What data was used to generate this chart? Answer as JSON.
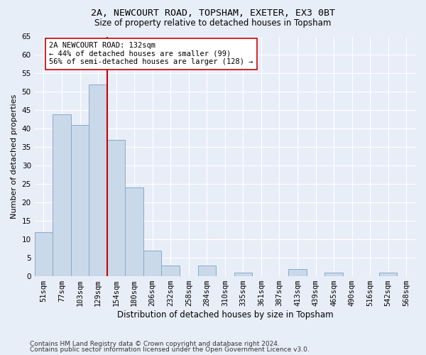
{
  "title1": "2A, NEWCOURT ROAD, TOPSHAM, EXETER, EX3 0BT",
  "title2": "Size of property relative to detached houses in Topsham",
  "xlabel": "Distribution of detached houses by size in Topsham",
  "ylabel": "Number of detached properties",
  "categories": [
    "51sqm",
    "77sqm",
    "103sqm",
    "129sqm",
    "154sqm",
    "180sqm",
    "206sqm",
    "232sqm",
    "258sqm",
    "284sqm",
    "310sqm",
    "335sqm",
    "361sqm",
    "387sqm",
    "413sqm",
    "439sqm",
    "465sqm",
    "490sqm",
    "516sqm",
    "542sqm",
    "568sqm"
  ],
  "values": [
    12,
    44,
    41,
    52,
    37,
    24,
    7,
    3,
    0,
    3,
    0,
    1,
    0,
    0,
    2,
    0,
    1,
    0,
    0,
    1,
    0
  ],
  "bar_color": "#c9d9ea",
  "bar_edge_color": "#8aaac8",
  "vline_x_index": 3,
  "vline_color": "#cc0000",
  "annotation_text": "2A NEWCOURT ROAD: 132sqm\n← 44% of detached houses are smaller (99)\n56% of semi-detached houses are larger (128) →",
  "annotation_box_color": "#ffffff",
  "annotation_box_edge": "#cc0000",
  "ylim": [
    0,
    65
  ],
  "yticks": [
    0,
    5,
    10,
    15,
    20,
    25,
    30,
    35,
    40,
    45,
    50,
    55,
    60,
    65
  ],
  "footer1": "Contains HM Land Registry data © Crown copyright and database right 2024.",
  "footer2": "Contains public sector information licensed under the Open Government Licence v3.0.",
  "bg_color": "#e8eef8",
  "plot_bg_color": "#e8eef8",
  "grid_color": "#ffffff",
  "title1_fontsize": 9.5,
  "title2_fontsize": 8.5,
  "axis_fontsize": 7.5,
  "ylabel_fontsize": 8,
  "xlabel_fontsize": 8.5,
  "footer_fontsize": 6.5,
  "annotation_fontsize": 7.5
}
